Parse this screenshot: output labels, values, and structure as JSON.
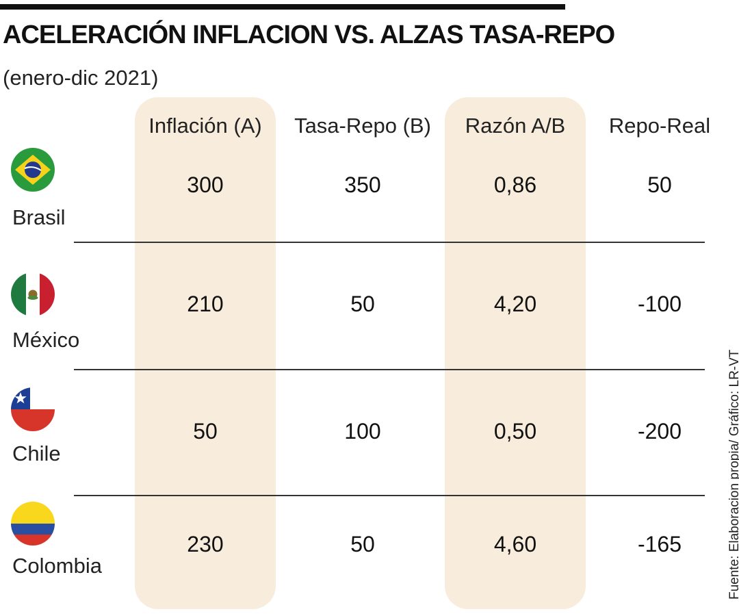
{
  "title": "ACELERACIÓN INFLACION VS. ALZAS TASA-REPO",
  "subtitle": "(enero-dic 2021)",
  "source": "Fuente:  Elaboracion propia/ Gráfico: LR-VT",
  "colors": {
    "highlight_band": "#f8ecdc",
    "text": "#111111",
    "rule": "#333333"
  },
  "chart_data": {
    "type": "table",
    "title": "ACELERACIÓN INFLACION VS. ALZAS TASA-REPO",
    "subtitle": "(enero-dic 2021)",
    "columns": [
      "Inflación (A)",
      "Tasa-Repo (B)",
      "Razón A/B",
      "Repo-Real"
    ],
    "highlighted_columns": [
      "Inflación (A)",
      "Razón A/B"
    ],
    "rows": [
      {
        "country": "Brasil",
        "flag": "brazil-flag",
        "values": [
          "300",
          "350",
          "0,86",
          "50"
        ]
      },
      {
        "country": "México",
        "flag": "mexico-flag",
        "values": [
          "210",
          "50",
          "4,20",
          "-100"
        ]
      },
      {
        "country": "Chile",
        "flag": "chile-flag",
        "values": [
          "50",
          "100",
          "0,50",
          "-200"
        ]
      },
      {
        "country": "Colombia",
        "flag": "colombia-flag",
        "values": [
          "230",
          "50",
          "4,60",
          "-165"
        ]
      }
    ],
    "source": "Fuente:  Elaboracion propia/ Gráfico: LR-VT"
  }
}
